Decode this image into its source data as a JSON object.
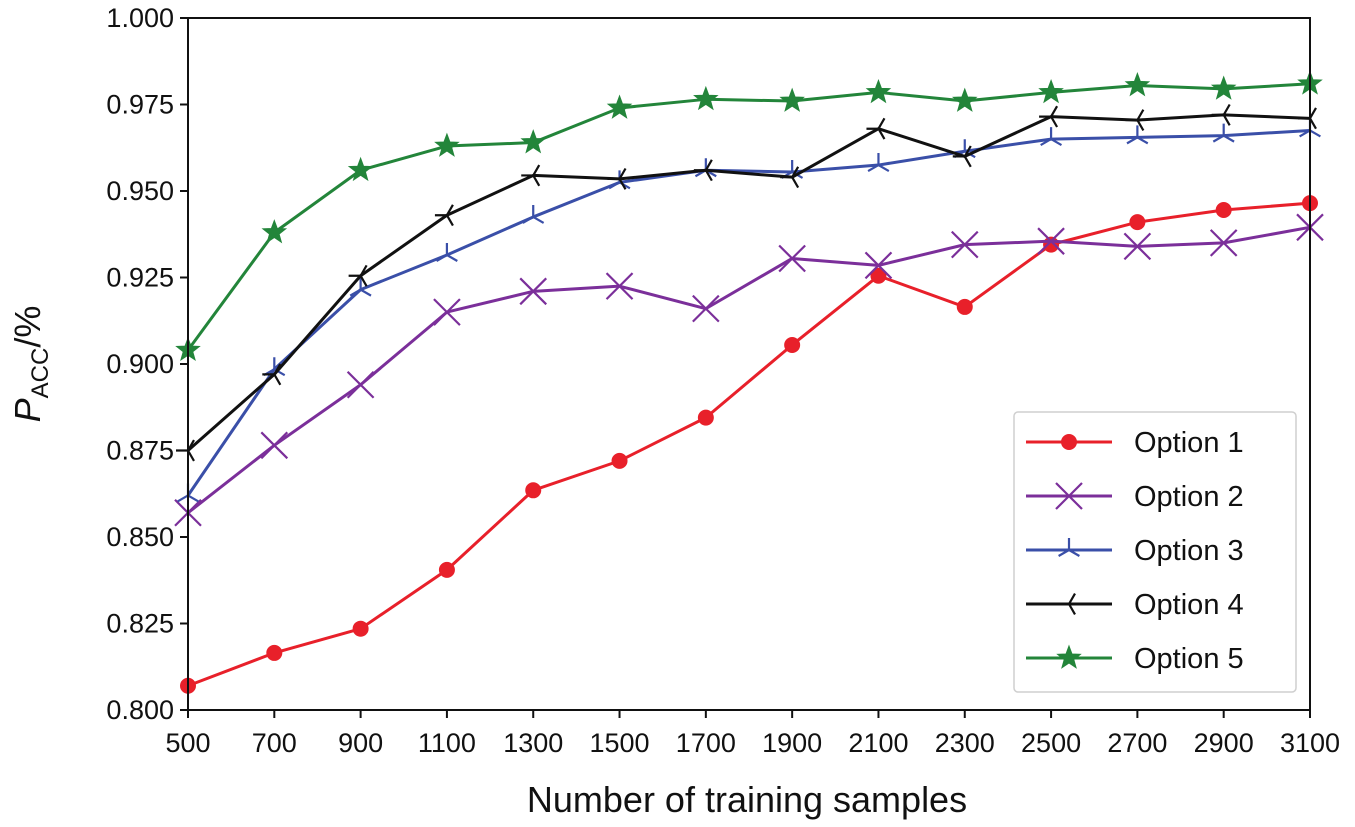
{
  "chart_data": {
    "type": "line",
    "xlabel": "Number of training samples",
    "ylabel_main": "P",
    "ylabel_sub": "ACC",
    "ylabel_suffix": "/%",
    "xlim": [
      500,
      3100
    ],
    "ylim": [
      0.8,
      1.0
    ],
    "x": [
      500,
      700,
      900,
      1100,
      1300,
      1500,
      1700,
      1900,
      2100,
      2300,
      2500,
      2700,
      2900,
      3100
    ],
    "x_tick_labels": [
      "500",
      "700",
      "900",
      "1100",
      "1300",
      "1500",
      "1700",
      "1900",
      "2100",
      "2300",
      "2500",
      "2700",
      "2900",
      "3100"
    ],
    "y_ticks": [
      0.8,
      0.825,
      0.85,
      0.875,
      0.9,
      0.925,
      0.95,
      0.975,
      1.0
    ],
    "y_tick_labels": [
      "0.800",
      "0.825",
      "0.850",
      "0.875",
      "0.900",
      "0.925",
      "0.950",
      "0.975",
      "1.000"
    ],
    "legend_position": "bottom-right",
    "series": [
      {
        "name": "Option 1",
        "color": "#e8202a",
        "marker": "circle",
        "values": [
          0.807,
          0.8165,
          0.8235,
          0.8405,
          0.8635,
          0.872,
          0.8845,
          0.9055,
          0.9255,
          0.9165,
          0.9345,
          0.941,
          0.9445,
          0.9465
        ]
      },
      {
        "name": "Option 2",
        "color": "#7b2f9a",
        "marker": "x",
        "values": [
          0.857,
          0.8765,
          0.894,
          0.915,
          0.921,
          0.9225,
          0.916,
          0.9305,
          0.9285,
          0.9345,
          0.9355,
          0.934,
          0.935,
          0.9395
        ]
      },
      {
        "name": "Option 3",
        "color": "#3a4fa8",
        "marker": "tri_star",
        "values": [
          0.862,
          0.8985,
          0.9215,
          0.9315,
          0.9425,
          0.9525,
          0.956,
          0.9555,
          0.9575,
          0.9615,
          0.965,
          0.9655,
          0.966,
          0.9675
        ]
      },
      {
        "name": "Option 4",
        "color": "#111111",
        "marker": "tri_left",
        "values": [
          0.875,
          0.897,
          0.9255,
          0.943,
          0.9545,
          0.9535,
          0.956,
          0.954,
          0.968,
          0.96,
          0.9715,
          0.9705,
          0.972,
          0.971
        ]
      },
      {
        "name": "Option 5",
        "color": "#23853a",
        "marker": "star",
        "values": [
          0.904,
          0.938,
          0.956,
          0.963,
          0.964,
          0.974,
          0.9765,
          0.976,
          0.9785,
          0.976,
          0.9785,
          0.9805,
          0.9795,
          0.981
        ]
      }
    ]
  }
}
